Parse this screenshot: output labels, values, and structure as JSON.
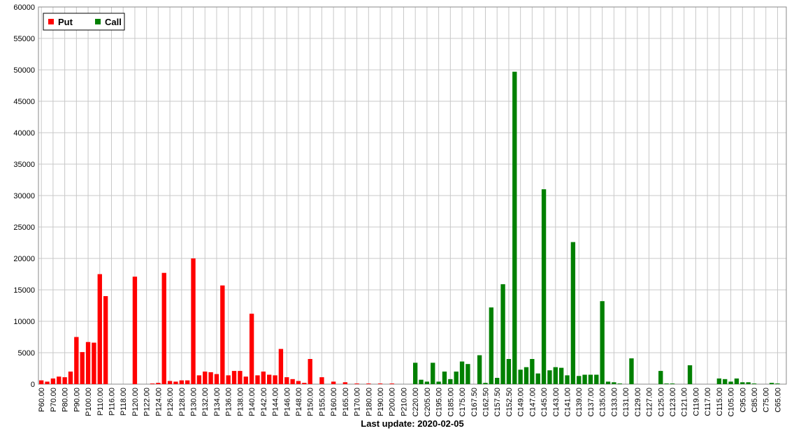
{
  "chart_data": {
    "type": "bar",
    "footer": "Last update: 2020-02-05",
    "categories": [
      "P60.00",
      null,
      "P70.00",
      null,
      "P80.00",
      null,
      "P90.00",
      null,
      "P100.00",
      null,
      "P110.00",
      null,
      "P116.00",
      null,
      "P118.00",
      null,
      "P120.00",
      null,
      "P122.00",
      null,
      "P124.00",
      null,
      "P126.00",
      null,
      "P128.00",
      null,
      "P130.00",
      null,
      "P132.00",
      null,
      "P134.00",
      null,
      "P136.00",
      null,
      "P138.00",
      null,
      "P140.00",
      null,
      "P142.00",
      null,
      "P144.00",
      null,
      "P146.00",
      null,
      "P148.00",
      null,
      "P150.00",
      null,
      "P155.00",
      null,
      "P160.00",
      null,
      "P165.00",
      null,
      "P170.00",
      null,
      "P180.00",
      null,
      "P190.00",
      null,
      "P200.00",
      null,
      "P210.00",
      null,
      "C220.00",
      null,
      "C205.00",
      null,
      "C195.00",
      null,
      "C185.00",
      null,
      "C175.00",
      null,
      "C167.50",
      null,
      "C162.50",
      null,
      "C157.50",
      null,
      "C152.50",
      null,
      "C149.00",
      null,
      "C147.00",
      null,
      "C145.00",
      null,
      "C143.00",
      null,
      "C141.00",
      null,
      "C139.00",
      null,
      "C137.00",
      null,
      "C135.00",
      null,
      "C133.00",
      null,
      "C131.00",
      null,
      "C129.00",
      null,
      "C127.00",
      null,
      "C125.00",
      null,
      "C123.00",
      null,
      "C121.00",
      null,
      "C119.00",
      null,
      "C117.00",
      null,
      "C115.00",
      null,
      "C105.00",
      null,
      "C95.00",
      null,
      "C85.00",
      null,
      "C75.00",
      null,
      "C65.00",
      null
    ],
    "series": [
      {
        "name": "Put",
        "color": "#ff0000",
        "values": [
          600,
          400,
          900,
          1200,
          1100,
          2000,
          7500,
          5100,
          6700,
          6600,
          17500,
          14000,
          0,
          0,
          0,
          0,
          17100,
          0,
          0,
          100,
          200,
          17700,
          500,
          400,
          600,
          600,
          20000,
          1400,
          2000,
          1900,
          1600,
          15700,
          1400,
          2100,
          2100,
          1200,
          11200,
          1400,
          2000,
          1500,
          1400,
          5600,
          1100,
          800,
          500,
          200,
          4000,
          0,
          1100,
          0,
          400,
          0,
          300,
          0,
          100,
          0,
          100,
          0,
          100,
          0,
          100,
          0,
          0,
          0,
          null,
          null,
          null,
          null,
          null,
          null,
          null,
          null,
          null,
          null,
          null,
          null,
          null,
          null,
          null,
          null,
          null,
          null,
          null,
          null,
          null,
          null,
          null,
          null,
          null,
          null,
          null,
          null,
          null,
          null,
          null,
          null,
          null,
          null,
          null,
          null,
          null,
          null,
          null,
          null,
          null,
          null,
          null,
          null,
          null,
          null,
          null,
          null,
          null,
          null,
          null,
          null,
          null,
          null,
          null,
          null,
          null,
          null,
          null,
          null,
          null,
          null,
          null,
          null
        ]
      },
      {
        "name": "Call",
        "color": "#008000",
        "values": [
          null,
          null,
          null,
          null,
          null,
          null,
          null,
          null,
          null,
          null,
          null,
          null,
          null,
          null,
          null,
          null,
          null,
          null,
          null,
          null,
          null,
          null,
          null,
          null,
          null,
          null,
          null,
          null,
          null,
          null,
          null,
          null,
          null,
          null,
          null,
          null,
          null,
          null,
          null,
          null,
          null,
          null,
          null,
          null,
          null,
          null,
          null,
          null,
          null,
          null,
          null,
          null,
          null,
          null,
          null,
          null,
          null,
          null,
          null,
          null,
          null,
          null,
          null,
          null,
          3400,
          700,
          400,
          3400,
          400,
          2000,
          800,
          2000,
          3600,
          3200,
          0,
          4600,
          200,
          12200,
          1000,
          15900,
          4000,
          49700,
          2300,
          2700,
          4000,
          1700,
          31000,
          2200,
          2700,
          2600,
          1400,
          22600,
          1300,
          1500,
          1500,
          1500,
          13200,
          400,
          300,
          100,
          0,
          4100,
          0,
          0,
          0,
          0,
          2100,
          100,
          100,
          0,
          0,
          3000,
          0,
          0,
          0,
          0,
          900,
          800,
          400,
          900,
          300,
          300,
          100,
          0,
          0,
          200,
          100,
          0
        ]
      }
    ],
    "ylim": [
      0,
      60000
    ],
    "yticks": [
      0,
      5000,
      10000,
      15000,
      20000,
      25000,
      30000,
      35000,
      40000,
      45000,
      50000,
      55000,
      60000
    ],
    "grid": true,
    "legend": "top-left"
  }
}
